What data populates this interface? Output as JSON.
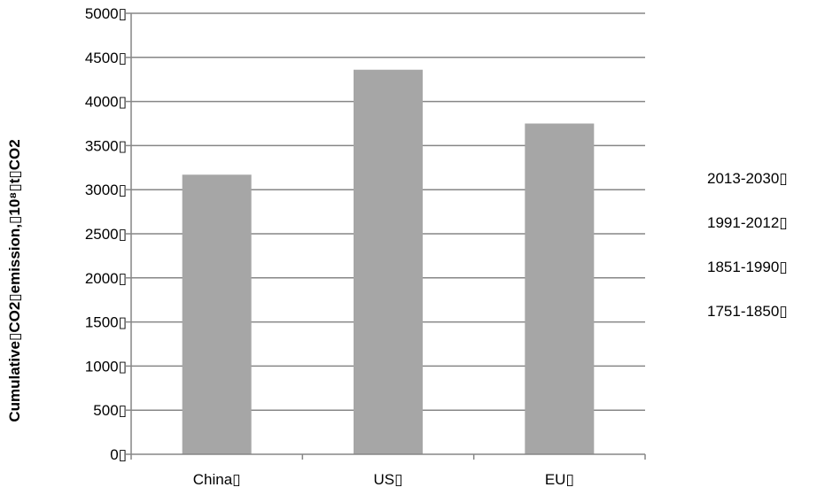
{
  "chart_data": {
    "type": "bar",
    "title": "",
    "xlabel": "",
    "ylabel": "Cumulative▯CO2▯emission,▯10⁸▯t▯CO2",
    "categories": [
      "China▯",
      "US▯",
      "EU▯"
    ],
    "values": [
      3170,
      4360,
      3750
    ],
    "ylim": [
      0,
      5000
    ],
    "yticks": [
      0,
      500,
      1000,
      1500,
      2000,
      2500,
      3000,
      3500,
      4000,
      4500,
      5000
    ],
    "ytick_labels": [
      "0▯",
      "500▯",
      "1000▯",
      "1500▯",
      "2000▯",
      "2500▯",
      "3000▯",
      "3500▯",
      "4000▯",
      "4500▯",
      "5000▯"
    ],
    "legend": [
      "2013-2030▯",
      "1991-2012▯",
      "1851-1990▯",
      "1751-1850▯"
    ],
    "legend_position": "right",
    "grid": true,
    "bar_color": "#a6a6a6",
    "grid_color": "#868686"
  }
}
